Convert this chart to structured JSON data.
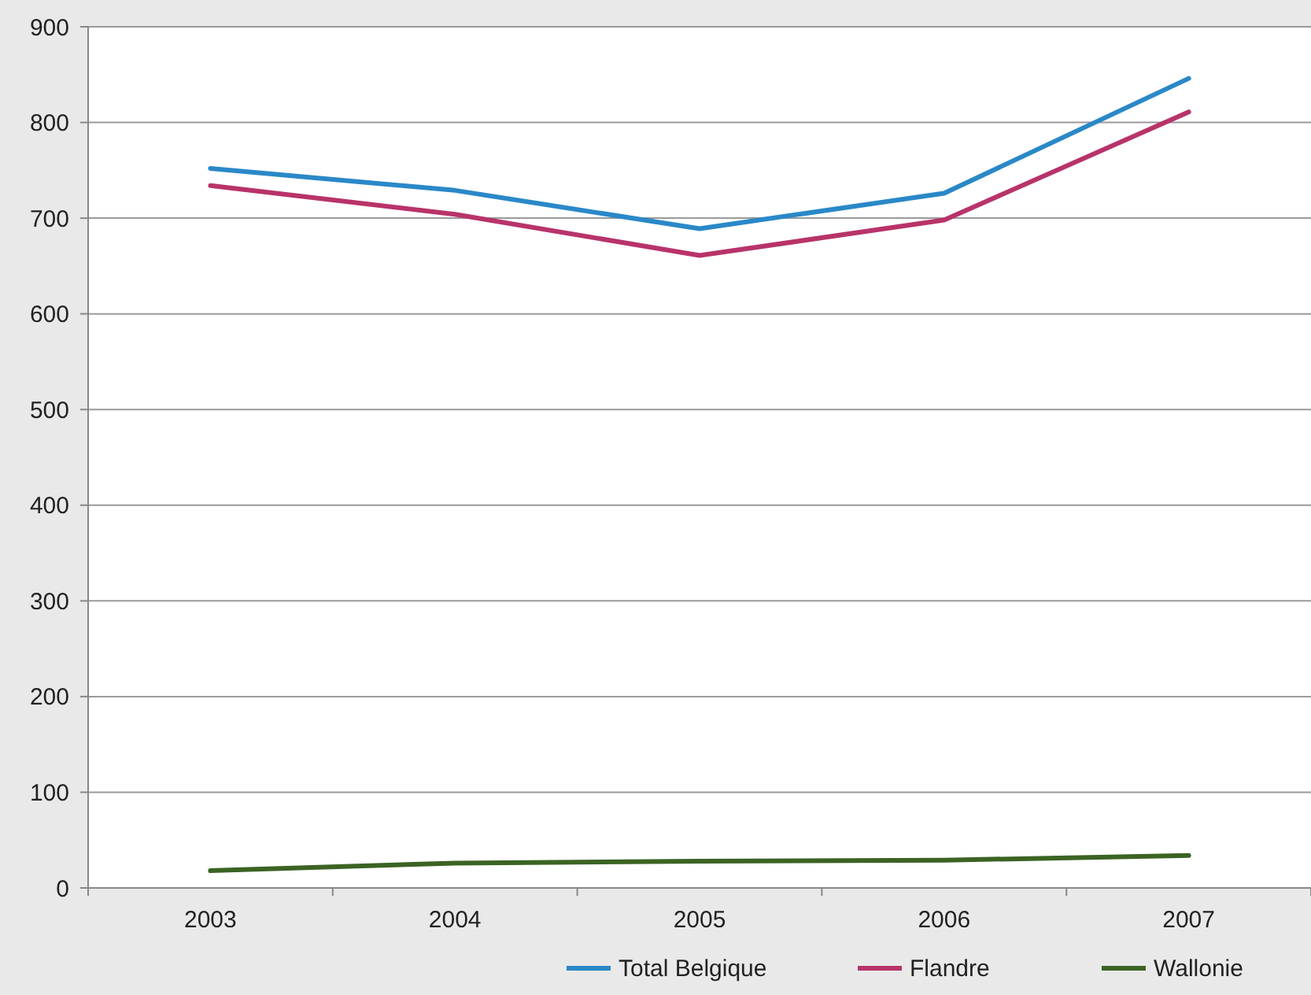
{
  "chart_data": {
    "type": "line",
    "categories": [
      "2003",
      "2004",
      "2005",
      "2006",
      "2007"
    ],
    "series": [
      {
        "name": "Total Belgique",
        "color": "#2a88c8",
        "values": [
          752,
          729,
          689,
          726,
          846
        ]
      },
      {
        "name": "Flandre",
        "color": "#b8336a",
        "values": [
          734,
          704,
          661,
          698,
          811
        ]
      },
      {
        "name": "Wallonie",
        "color": "#3b6323",
        "values": [
          18,
          26,
          28,
          29,
          34
        ]
      }
    ],
    "ylim": [
      0,
      900
    ],
    "yticks": [
      0,
      100,
      200,
      300,
      400,
      500,
      600,
      700,
      800,
      900
    ],
    "grid": "y",
    "legend": "bottom right",
    "marker": "none",
    "line_style": "solid"
  }
}
